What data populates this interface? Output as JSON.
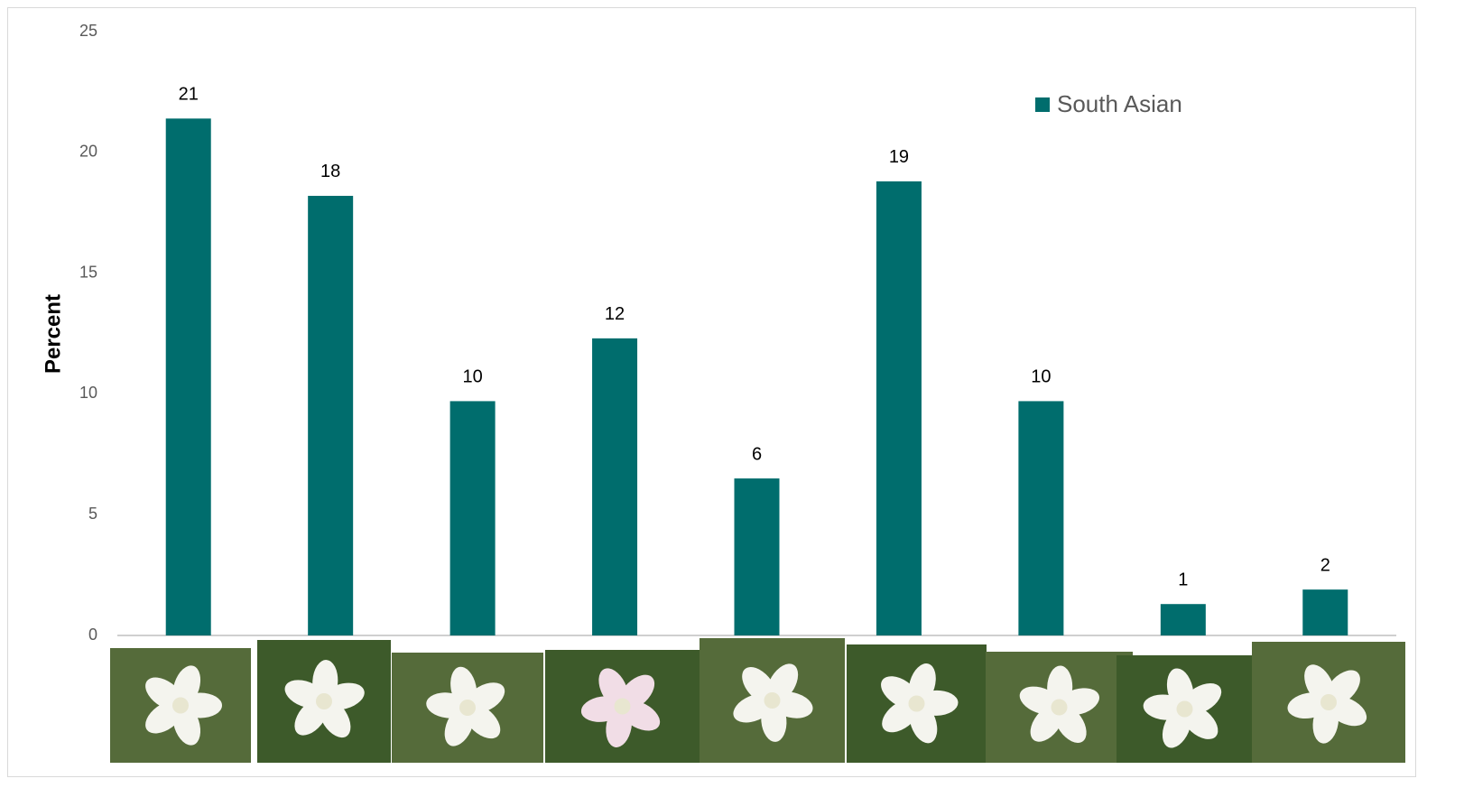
{
  "chart_data": {
    "type": "bar",
    "categories": [
      null,
      null,
      null,
      null,
      null,
      null,
      null,
      null,
      null
    ],
    "series": [
      {
        "name": "South Asian",
        "color": "#006d6d",
        "values": [
          21.4,
          18.2,
          9.7,
          12.3,
          6.5,
          18.8,
          9.7,
          1.3,
          1.9
        ],
        "value_labels": [
          "21",
          "18",
          "10",
          "12",
          "6",
          "19",
          "10",
          "1",
          "2"
        ]
      }
    ],
    "y_label": "Percent",
    "ylim": [
      0,
      25
    ],
    "yticks": [
      0,
      5,
      10,
      15,
      20,
      25
    ],
    "grid": false,
    "legend": "upper-right"
  }
}
